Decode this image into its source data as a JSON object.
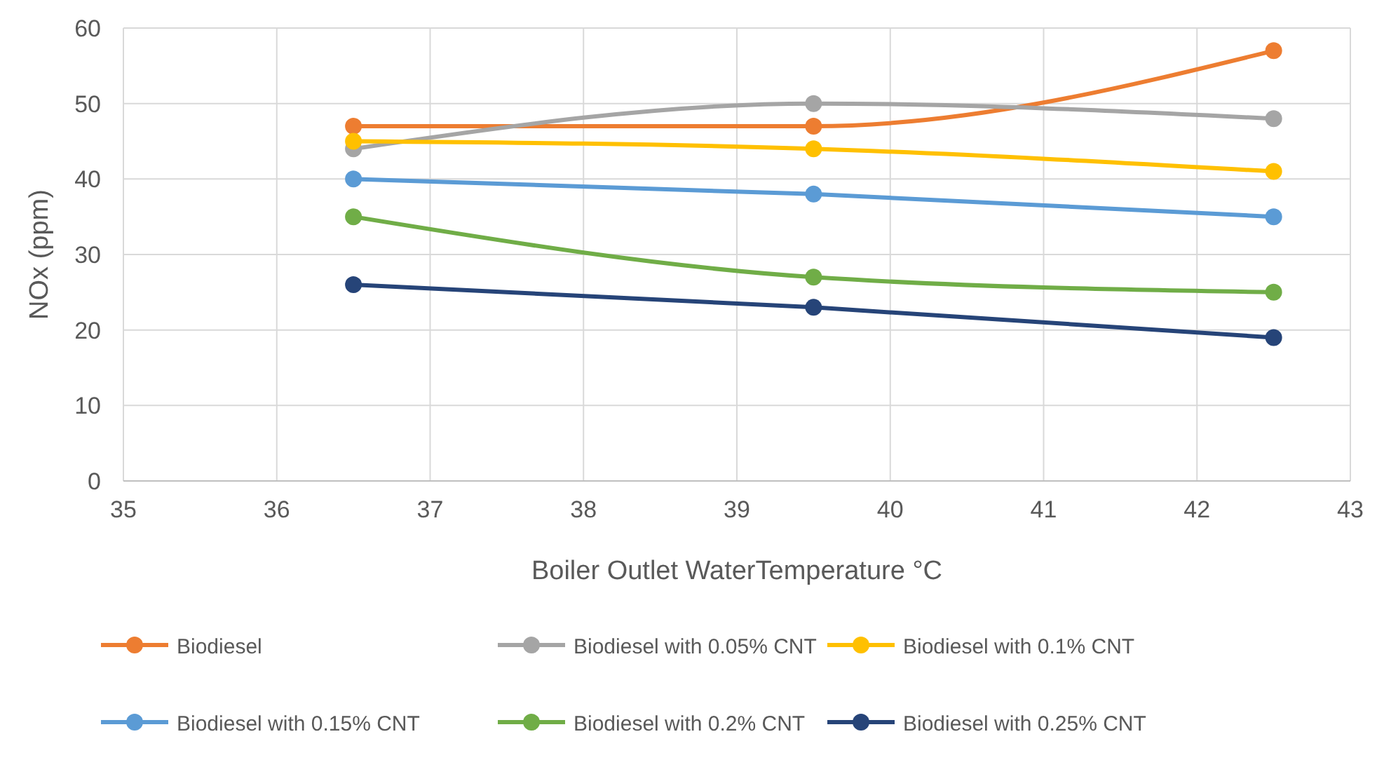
{
  "chart_data": {
    "type": "line",
    "xlabel": "Boiler Outlet WaterTemperature °C",
    "ylabel": "NOx (ppm)",
    "x": [
      36.5,
      39.5,
      42.5
    ],
    "xlim": [
      35,
      43
    ],
    "xticks": [
      35,
      36,
      37,
      38,
      39,
      40,
      41,
      42,
      43
    ],
    "ylim": [
      0,
      60
    ],
    "yticks": [
      0,
      10,
      20,
      30,
      40,
      50,
      60
    ],
    "grid": true,
    "legend": "bottom",
    "marker": "circle",
    "line_style": "solid",
    "series": [
      {
        "name": "Biodiesel",
        "color": "#ed7d31",
        "values": [
          47,
          47,
          57
        ]
      },
      {
        "name": "Biodiesel with 0.05% CNT",
        "color": "#a5a5a5",
        "values": [
          44,
          50,
          48
        ]
      },
      {
        "name": "Biodiesel with 0.1% CNT",
        "color": "#ffc000",
        "values": [
          45,
          44,
          41
        ]
      },
      {
        "name": "Biodiesel with 0.15% CNT",
        "color": "#5b9bd5",
        "values": [
          40,
          38,
          35
        ]
      },
      {
        "name": "Biodiesel with 0.2% CNT",
        "color": "#70ad47",
        "values": [
          35,
          27,
          25
        ]
      },
      {
        "name": "Biodiesel with 0.25% CNT",
        "color": "#264478",
        "values": [
          26,
          23,
          19
        ]
      }
    ]
  }
}
